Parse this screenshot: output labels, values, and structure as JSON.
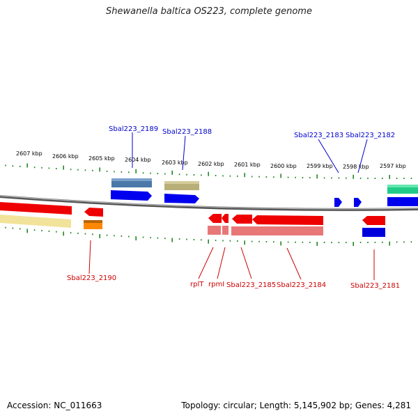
{
  "title": "Shewanella baltica OS223, complete genome",
  "footer": {
    "accession": "Accession: NC_011663",
    "info": "Topology: circular; Length: 5,145,902 bp; Genes: 4,281"
  },
  "scale": {
    "labels": [
      "2607 kbp",
      "2606 kbp",
      "2605 kbp",
      "2604 kbp",
      "2603 kbp",
      "2602 kbp",
      "2601 kbp",
      "2600 kbp",
      "2599 kbp",
      "2598 kbp",
      "2597 kbp"
    ]
  },
  "genes_top": [
    {
      "label": "Sbal223_2189"
    },
    {
      "label": "Sbal223_2188"
    },
    {
      "label": "Sbal223_2183"
    },
    {
      "label": "Sbal223_2182"
    }
  ],
  "genes_bottom": [
    {
      "label": "Sbal223_2190"
    },
    {
      "label": "rplT"
    },
    {
      "label": "rpmI"
    },
    {
      "label": "Sbal223_2185"
    },
    {
      "label": "Sbal223_2184"
    },
    {
      "label": "Sbal223_2181"
    }
  ],
  "colors": {
    "forward": "#0000ee",
    "reverse": "#ee0000",
    "tick": "#228822",
    "backbone": "#777777"
  }
}
